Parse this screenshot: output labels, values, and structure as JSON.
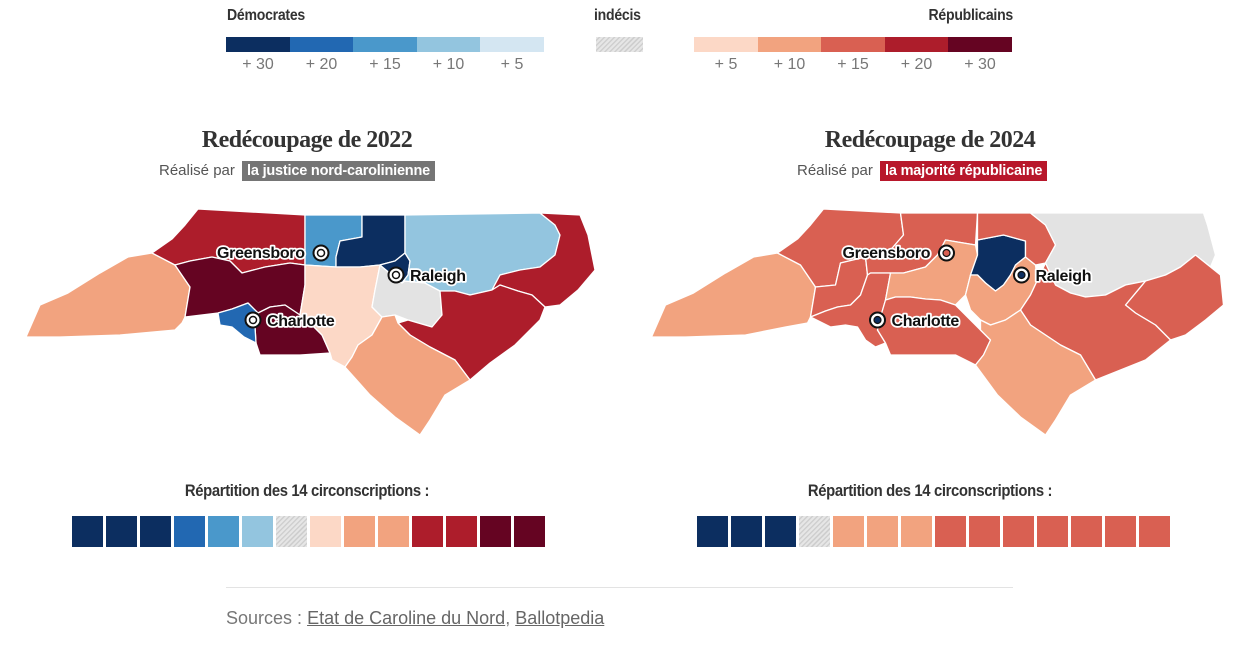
{
  "legend": {
    "democrats_label": "Démocrates",
    "undecided_label": "indécis",
    "republicans_label": "Républicains",
    "dem_colors": [
      "#0c2e60",
      "#2268b2",
      "#4a98cb",
      "#93c5df",
      "#d4e6f2"
    ],
    "rep_colors": [
      "#fcd8c6",
      "#f2a37f",
      "#d96052",
      "#ad1d2b",
      "#650422"
    ],
    "dem_ticks": [
      "+ 30",
      "+ 20",
      "+ 15",
      "+ 10",
      "+ 5"
    ],
    "rep_ticks": [
      "+ 5",
      "+ 10",
      "+ 15",
      "+ 20",
      "+ 30"
    ]
  },
  "map_2022": {
    "title": "Redécoupage de 2022",
    "subtitle_prefix": "Réalisé par",
    "subtitle_tag": "la justice nord-carolinienne",
    "tag_color": "#757575",
    "cities": {
      "greensboro": "Greensboro",
      "raleigh": "Raleigh",
      "charlotte": "Charlotte"
    },
    "distribution_title": "Répartition des 14 circonscriptions :",
    "distribution": [
      "#0c2e60",
      "#0c2e60",
      "#0c2e60",
      "#2268b2",
      "#4a98cb",
      "#93c5df",
      "hatch",
      "#fcd8c6",
      "#f2a37f",
      "#f2a37f",
      "#ad1d2b",
      "#ad1d2b",
      "#650422",
      "#650422"
    ]
  },
  "map_2024": {
    "title": "Redécoupage de 2024",
    "subtitle_prefix": "Réalisé par",
    "subtitle_tag": "la majorité républicaine",
    "tag_color": "#b8172b",
    "cities": {
      "greensboro": "Greensboro",
      "raleigh": "Raleigh",
      "charlotte": "Charlotte"
    },
    "distribution_title": "Répartition des 14 circonscriptions :",
    "distribution": [
      "#0c2e60",
      "#0c2e60",
      "#0c2e60",
      "hatch",
      "#f2a37f",
      "#f2a37f",
      "#f2a37f",
      "#d96052",
      "#d96052",
      "#d96052",
      "#d96052",
      "#d96052",
      "#d96052",
      "#d96052"
    ]
  },
  "sources": {
    "prefix": "Sources :",
    "link1": "Etat de Caroline du Nord",
    "separator": ",",
    "link2": "Ballotpedia"
  }
}
